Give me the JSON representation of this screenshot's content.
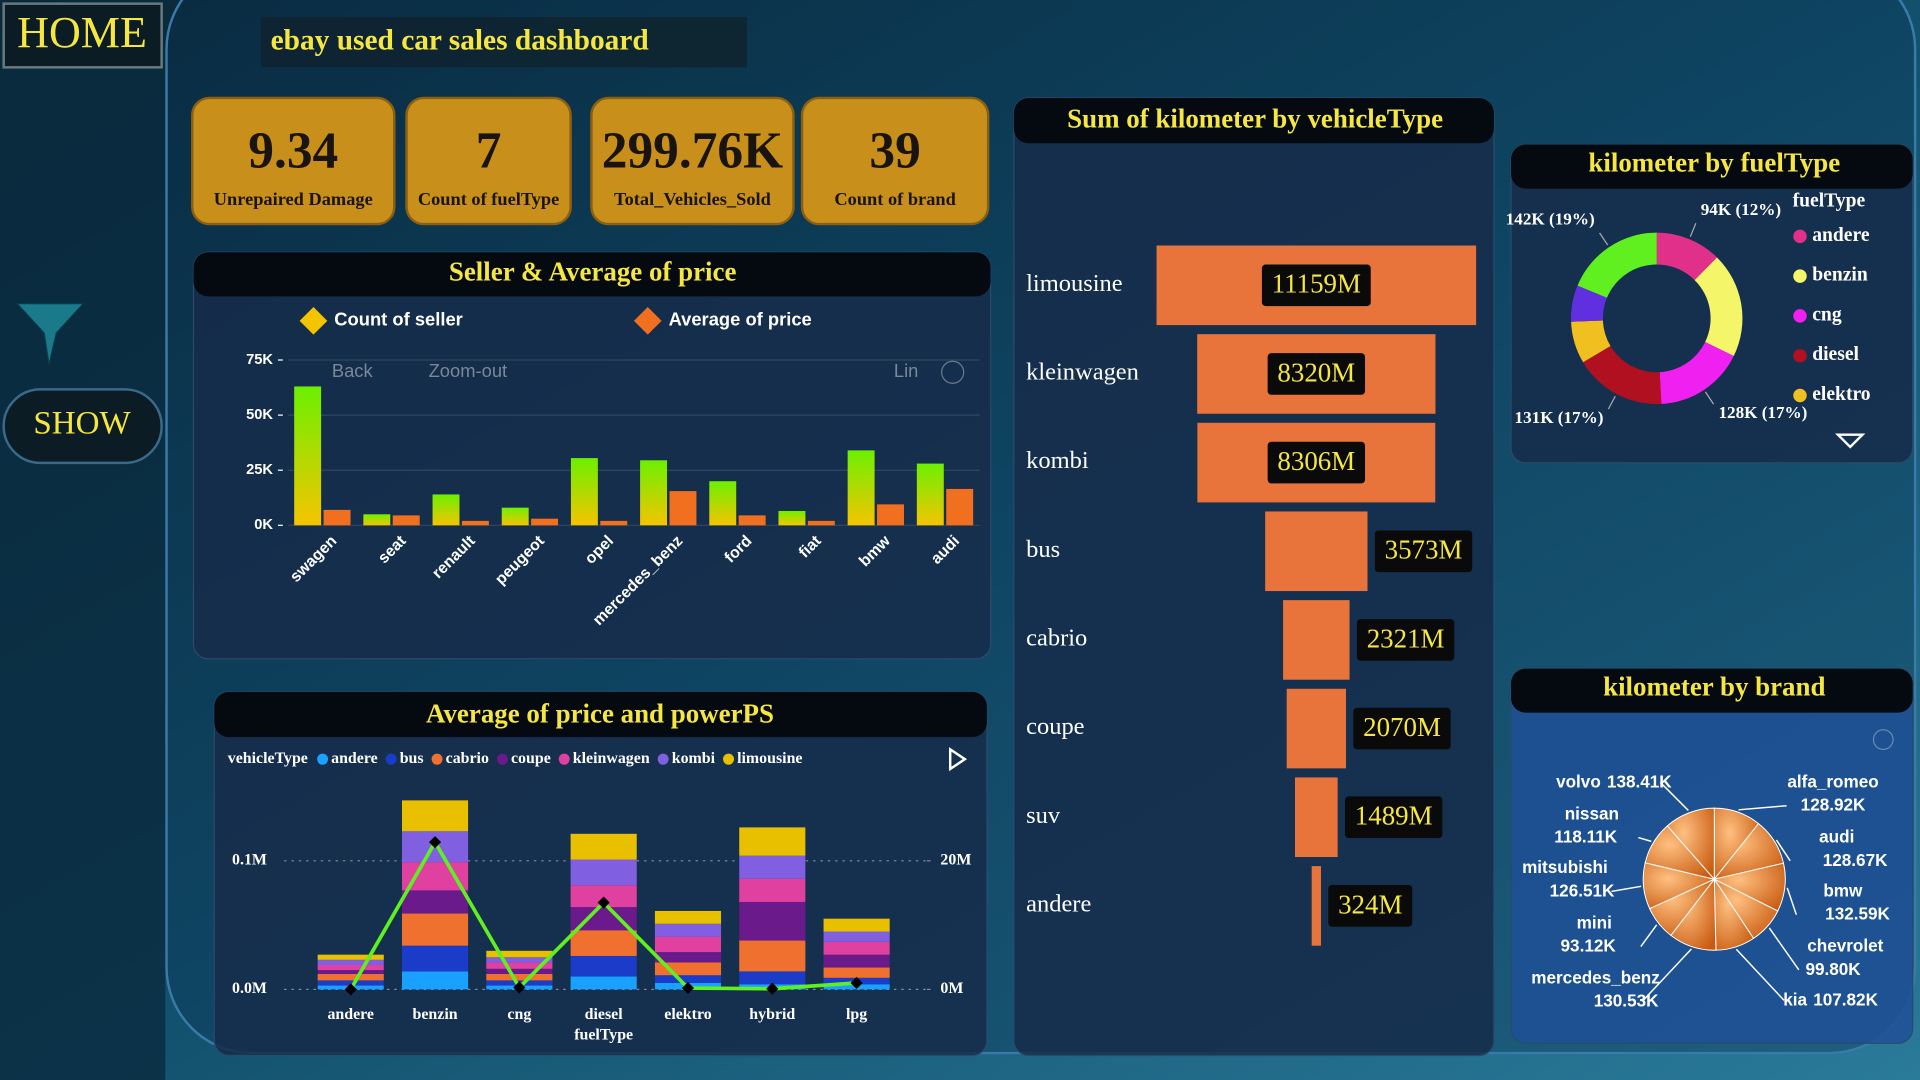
{
  "header": {
    "home": "HOME",
    "title": "ebay used car sales dashboard",
    "show": "SHOW"
  },
  "kpis": [
    {
      "value": "9.34",
      "label": "Unrepaired Damage"
    },
    {
      "value": "7",
      "label": "Count of fuelType"
    },
    {
      "value": "299.76K",
      "label": "Total_Vehicles_Sold"
    },
    {
      "value": "39",
      "label": "Count of brand"
    }
  ],
  "chart_data": [
    {
      "type": "bar",
      "title": "Seller & Average of price",
      "categories": [
        "swagen",
        "seat",
        "renault",
        "peugeot",
        "opel",
        "mercedes_benz",
        "ford",
        "fiat",
        "bmw",
        "audi"
      ],
      "series": [
        {
          "name": "Count of seller",
          "color": "#f5c400",
          "values": [
            63000,
            5000,
            14000,
            8000,
            30500,
            29500,
            20000,
            6500,
            34000,
            28000
          ]
        },
        {
          "name": "Average of price",
          "color": "#f07020",
          "values": [
            7000,
            4500,
            2000,
            3000,
            2000,
            15500,
            4500,
            2000,
            9500,
            16500
          ]
        }
      ],
      "ylim": [
        0,
        75000
      ],
      "yticks": [
        {
          "value": 0,
          "label": "0K"
        },
        {
          "value": 25000,
          "label": "25K"
        },
        {
          "value": 50000,
          "label": "50K"
        },
        {
          "value": 75000,
          "label": "75K"
        }
      ],
      "grid": true,
      "controls": [
        "Back",
        "Zoom-out",
        "Lin"
      ]
    },
    {
      "type": "bar",
      "stacked": true,
      "title": "Average of price and powerPS",
      "legend_title": "vehicleType",
      "xlabel": "fuelType",
      "categories": [
        "andere",
        "benzin",
        "cng",
        "diesel",
        "elektro",
        "hybrid",
        "lpg"
      ],
      "series": [
        {
          "name": "andere",
          "color": "#1aa0ff",
          "values": [
            3000,
            14000,
            3000,
            10000,
            5000,
            4000,
            4000
          ]
        },
        {
          "name": "bus",
          "color": "#1a3cc8",
          "values": [
            4000,
            20000,
            4000,
            16000,
            6000,
            10000,
            5000
          ]
        },
        {
          "name": "cabrio",
          "color": "#f07030",
          "values": [
            5000,
            25000,
            5000,
            20000,
            10000,
            24000,
            8000
          ]
        },
        {
          "name": "coupe",
          "color": "#6a1a8a",
          "values": [
            3000,
            18000,
            4000,
            18000,
            8000,
            30000,
            10000
          ]
        },
        {
          "name": "kleinwagen",
          "color": "#e040a0",
          "values": [
            4000,
            22000,
            5000,
            17000,
            12000,
            18000,
            10000
          ]
        },
        {
          "name": "kombi",
          "color": "#8060e0",
          "values": [
            4000,
            24000,
            4000,
            20000,
            10000,
            18000,
            8000
          ]
        },
        {
          "name": "limousine",
          "color": "#e8c000",
          "values": [
            4000,
            24000,
            5000,
            20000,
            10000,
            22000,
            10000
          ]
        }
      ],
      "line": {
        "color": "#60f020",
        "axis": "y2",
        "values": [
          0,
          22900000,
          300000,
          13500000,
          200000,
          100000,
          1000000
        ]
      },
      "ylim": [
        0,
        150000
      ],
      "yticks": [
        {
          "value": 0,
          "label": "0.0M"
        },
        {
          "value": 100000,
          "label": "0.1M"
        }
      ],
      "y2lim": [
        0,
        30000000
      ],
      "y2ticks": [
        {
          "value": 0,
          "label": "0M"
        },
        {
          "value": 20000000,
          "label": "20M"
        }
      ],
      "grid": true
    },
    {
      "type": "funnel",
      "title": "Sum of kilometer by vehicleType",
      "categories": [
        "limousine",
        "kleinwagen",
        "kombi",
        "bus",
        "cabrio",
        "coupe",
        "suv",
        "andere"
      ],
      "values": [
        11159,
        8320,
        8306,
        3573,
        2321,
        2070,
        1489,
        324
      ],
      "value_labels": [
        "11159M",
        "8320M",
        "8306M",
        "3573M",
        "2321M",
        "2070M",
        "1489M",
        "324M"
      ],
      "color": "#e8743b"
    },
    {
      "type": "pie",
      "donut": true,
      "title": "kilometer by fuelType",
      "legend_title": "fuelType",
      "categories": [
        "andere",
        "benzin",
        "cng",
        "diesel",
        "elektro",
        null,
        null
      ],
      "values": [
        94,
        150,
        128,
        131,
        60,
        52,
        142
      ],
      "value_labels": [
        "94K (12%)",
        null,
        "128K (17%)",
        "131K (17%)",
        null,
        null,
        "142K (19%)"
      ],
      "colors": [
        "#e0308a",
        "#f5f56a",
        "#f020f0",
        "#b01020",
        "#f0c020",
        "#6030e0",
        "#60f020"
      ]
    },
    {
      "type": "pie",
      "title": "kilometer by brand",
      "categories": [
        "alfa_romeo",
        "audi",
        "bmw",
        "chevrolet",
        "kia",
        "mercedes_benz",
        "mini",
        "mitsubishi",
        "nissan",
        "volvo"
      ],
      "values": [
        128.92,
        128.67,
        132.59,
        99.8,
        107.82,
        130.53,
        93.12,
        126.51,
        118.11,
        138.41
      ],
      "value_labels": [
        "128.92K",
        "128.67K",
        "132.59K",
        "99.80K",
        "107.82K",
        "130.53K",
        "93.12K",
        "126.51K",
        "118.11K",
        "138.41K"
      ],
      "color": "#e8782c"
    }
  ]
}
